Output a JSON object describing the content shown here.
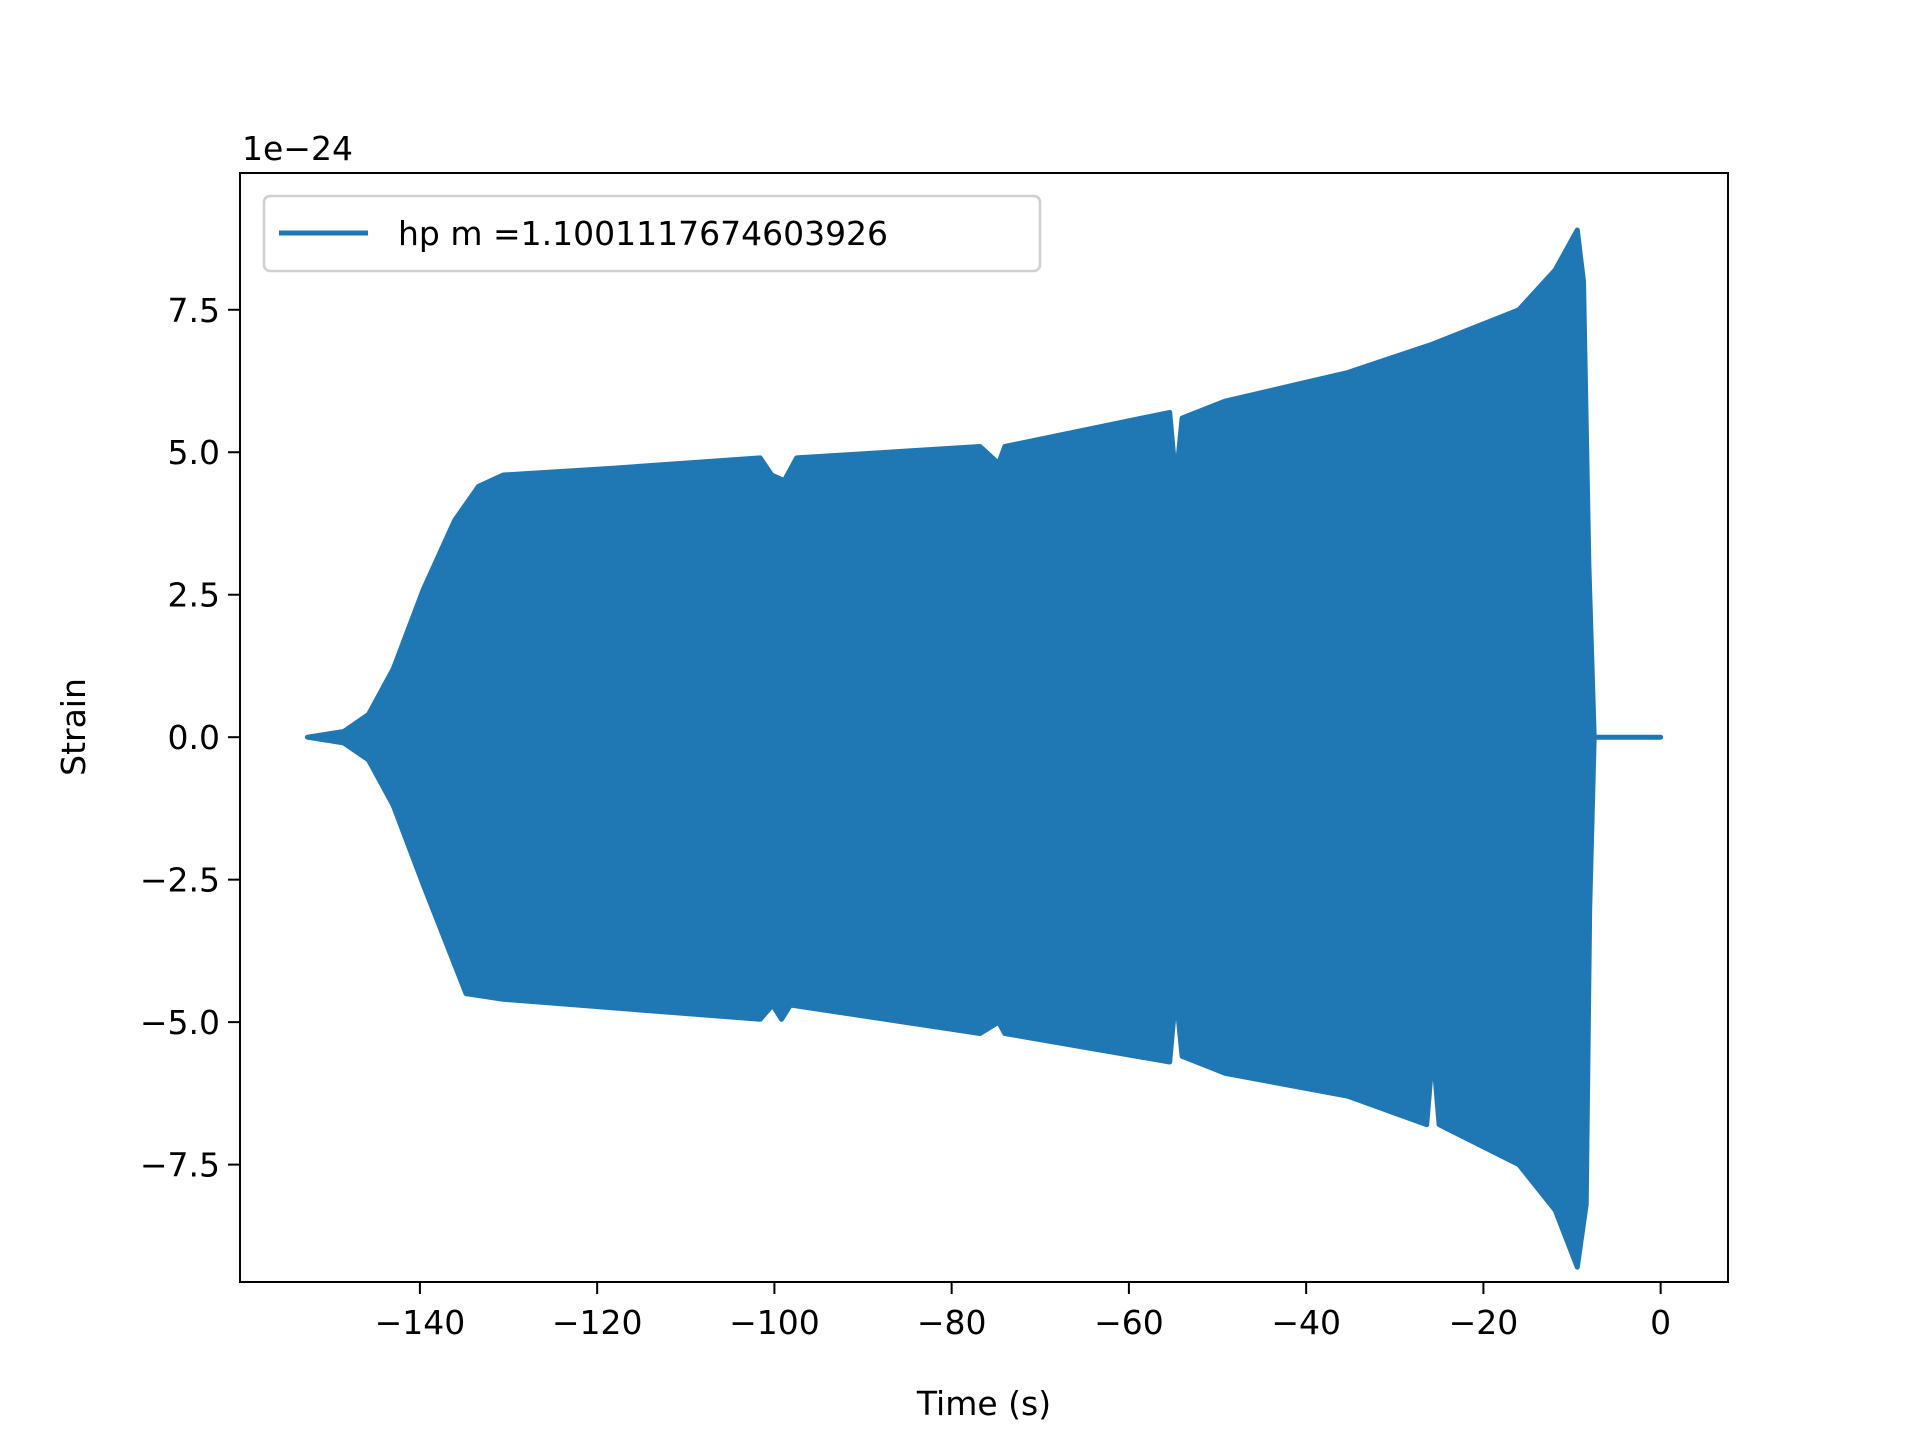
{
  "chart_data": {
    "type": "line",
    "title": "",
    "xlabel": "Time (s)",
    "ylabel": "Strain",
    "offset_text": "1e−24",
    "xlim": [
      -160.3,
      7.6
    ],
    "ylim": [
      -9.56,
      9.9
    ],
    "xticks": [
      -140,
      -120,
      -100,
      -80,
      -60,
      -40,
      -20,
      0
    ],
    "xtick_labels": [
      "−140",
      "−120",
      "−100",
      "−80",
      "−60",
      "−40",
      "−20",
      "0"
    ],
    "yticks": [
      -7.5,
      -5.0,
      -2.5,
      0.0,
      2.5,
      5.0,
      7.5
    ],
    "ytick_labels": [
      "−7.5",
      "−5.0",
      "−2.5",
      "0.0",
      "2.5",
      "5.0",
      "7.5"
    ],
    "grid": false,
    "legend_position": "top-left",
    "series": [
      {
        "name": "hp m =1.1001117674603926",
        "color": "#1f77b4",
        "note_envelope": "rapidly oscillating signal, drawn as its upper/lower envelope",
        "upper": {
          "x": [
            -152.7,
            -148.6,
            -145.8,
            -143.0,
            -139.6,
            -136.1,
            -133.4,
            -130.6,
            -118.2,
            -101.6,
            -100.3,
            -98.9,
            -97.5,
            -76.8,
            -74.7,
            -74.0,
            -55.4,
            -54.7,
            -54.0,
            -49.1,
            -35.3,
            -25.7,
            -16.0,
            -11.9,
            -9.4,
            -8.7,
            -8.1,
            -7.5,
            0.0
          ],
          "y": [
            0.0,
            0.1,
            0.4,
            1.2,
            2.6,
            3.8,
            4.4,
            4.6,
            4.72,
            4.9,
            4.6,
            4.5,
            4.9,
            5.1,
            4.8,
            5.1,
            5.7,
            4.5,
            5.6,
            5.9,
            6.4,
            6.9,
            7.5,
            8.2,
            8.9,
            8.0,
            3.0,
            0.0,
            0.0
          ]
        },
        "lower": {
          "x": [
            -152.7,
            -148.6,
            -145.8,
            -143.0,
            -139.6,
            -134.8,
            -130.6,
            -101.6,
            -100.2,
            -99.2,
            -98.2,
            -76.8,
            -74.7,
            -74.0,
            -55.4,
            -54.7,
            -54.0,
            -49.1,
            -35.3,
            -26.4,
            -25.7,
            -25.0,
            -16.0,
            -11.9,
            -9.4,
            -8.4,
            -8.0,
            -7.5,
            0.0
          ],
          "y": [
            0.0,
            -0.1,
            -0.4,
            -1.2,
            -2.6,
            -4.5,
            -4.6,
            -4.95,
            -4.7,
            -4.95,
            -4.7,
            -5.2,
            -5.0,
            -5.2,
            -5.7,
            -4.5,
            -5.6,
            -5.9,
            -6.3,
            -6.8,
            -5.5,
            -6.8,
            -7.5,
            -8.3,
            -9.3,
            -8.2,
            -3.0,
            0.0,
            0.0
          ]
        }
      }
    ]
  }
}
